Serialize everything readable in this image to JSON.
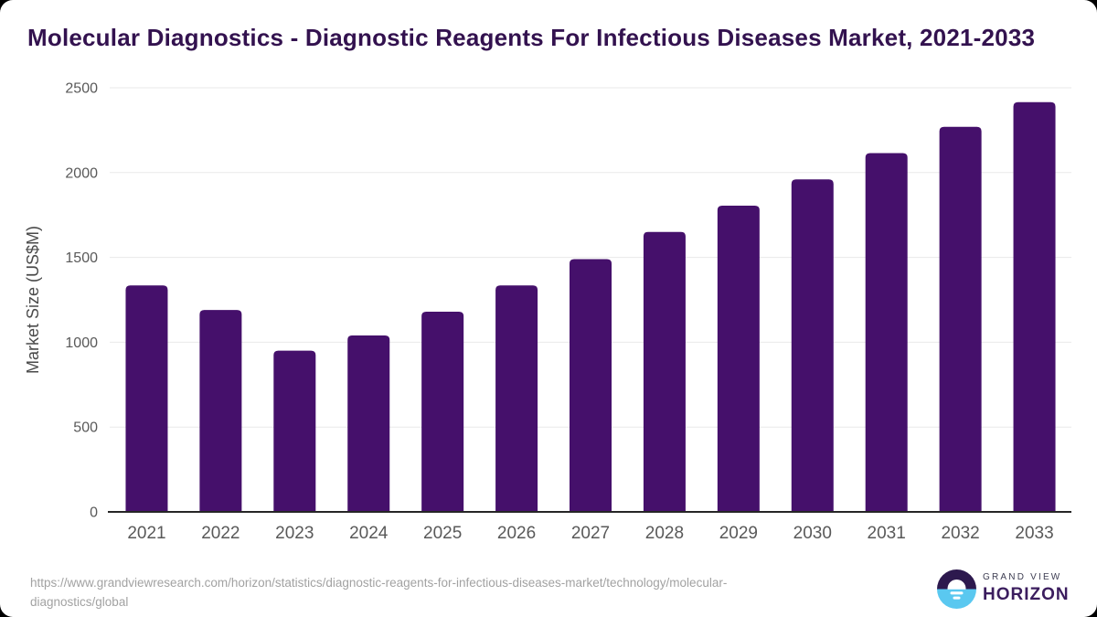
{
  "title": "Molecular Diagnostics - Diagnostic Reagents For Infectious Diseases Market, 2021-2033",
  "chart_data": {
    "type": "bar",
    "categories": [
      "2021",
      "2022",
      "2023",
      "2024",
      "2025",
      "2026",
      "2027",
      "2028",
      "2029",
      "2030",
      "2031",
      "2032",
      "2033"
    ],
    "values": [
      1335,
      1190,
      950,
      1040,
      1180,
      1335,
      1490,
      1650,
      1805,
      1960,
      2115,
      2270,
      2415
    ],
    "title": "Molecular Diagnostics - Diagnostic Reagents For Infectious Diseases Market, 2021-2033",
    "xlabel": "",
    "ylabel": "Market Size (US$M)",
    "ylim": [
      0,
      2500
    ],
    "yticks": [
      0,
      500,
      1000,
      1500,
      2000,
      2500
    ],
    "grid": true,
    "legend_position": "none",
    "bar_color": "#45106b",
    "gridline_color": "#e9e9e9",
    "axis_line_color": "#262626",
    "tick_label_color": "#595959"
  },
  "footer": {
    "source_url_line1": "https://www.grandviewresearch.com/horizon/statistics/diagnostic-reagents-for-infectious-diseases-market/technology/molecular-",
    "source_url_line2": "diagnostics/global",
    "logo": {
      "brand_top": "GRAND VIEW",
      "brand_bottom": "HORIZON",
      "icon_dark_color": "#2d194e",
      "icon_blue_color": "#5ac8f0"
    }
  },
  "colors": {
    "title": "#33124f",
    "card_background": "#ffffff",
    "source_text": "#a2a2a2"
  }
}
